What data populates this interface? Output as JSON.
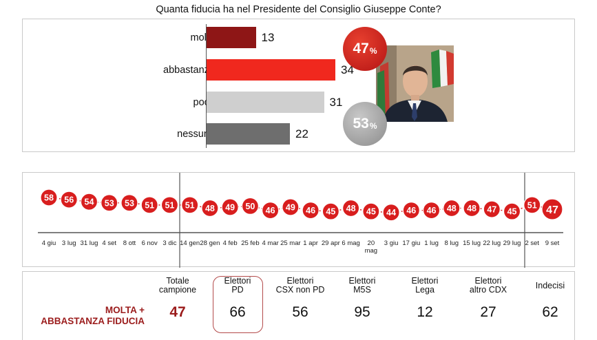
{
  "title": "Quanta fiducia ha nel Presidente del Consiglio Giuseppe Conte?",
  "chart_data": [
    {
      "type": "bar",
      "orientation": "horizontal",
      "categories": [
        "molta",
        "abbastanza",
        "poca",
        "nessuna"
      ],
      "values": [
        13,
        34,
        31,
        22
      ],
      "colors": [
        "#8e1616",
        "#f0281e",
        "#cfcfcf",
        "#6e6e6e"
      ],
      "xlim": [
        0,
        40
      ],
      "summary": [
        {
          "value": "47",
          "unit": "%",
          "color": "#d01c1c"
        },
        {
          "value": "53",
          "unit": "%",
          "color": "#a3a3a3"
        }
      ]
    },
    {
      "type": "line",
      "x": [
        "4 giu",
        "3 lug",
        "31 lug",
        "4 set",
        "8 ott",
        "6 nov",
        "3 dic",
        "14 gen",
        "28 gen",
        "4 feb",
        "25 feb",
        "4 mar",
        "25 mar",
        "1 apr",
        "29 apr",
        "6 mag",
        "20 mag",
        "3 giu",
        "17 giu",
        "1 lug",
        "8 lug",
        "15 lug",
        "22 lug",
        "29 lug",
        "2 set",
        "9 set"
      ],
      "values": [
        58,
        56,
        54,
        53,
        53,
        51,
        51,
        51,
        48,
        49,
        50,
        46,
        49,
        46,
        45,
        48,
        45,
        44,
        46,
        46,
        48,
        48,
        47,
        45,
        51,
        47
      ],
      "ylim": [
        40,
        60
      ],
      "marker_color": "#d81e1e"
    }
  ],
  "table": {
    "row_label_line1": "MOLTA +",
    "row_label_line2": "ABBASTANZA FIDUCIA",
    "columns": [
      {
        "h1": "Totale",
        "h2": "campione",
        "value": "47",
        "highlight_value": true
      },
      {
        "h1": "Elettori",
        "h2": "PD",
        "value": "66",
        "boxed": true
      },
      {
        "h1": "Elettori",
        "h2": "CSX non PD",
        "value": "56"
      },
      {
        "h1": "Elettori",
        "h2": "M5S",
        "value": "95"
      },
      {
        "h1": "Elettori",
        "h2": "Lega",
        "value": "12"
      },
      {
        "h1": "Elettori",
        "h2": "altro CDX",
        "value": "27"
      },
      {
        "h1": "Indecisi",
        "h2": "",
        "value": "62"
      }
    ]
  }
}
